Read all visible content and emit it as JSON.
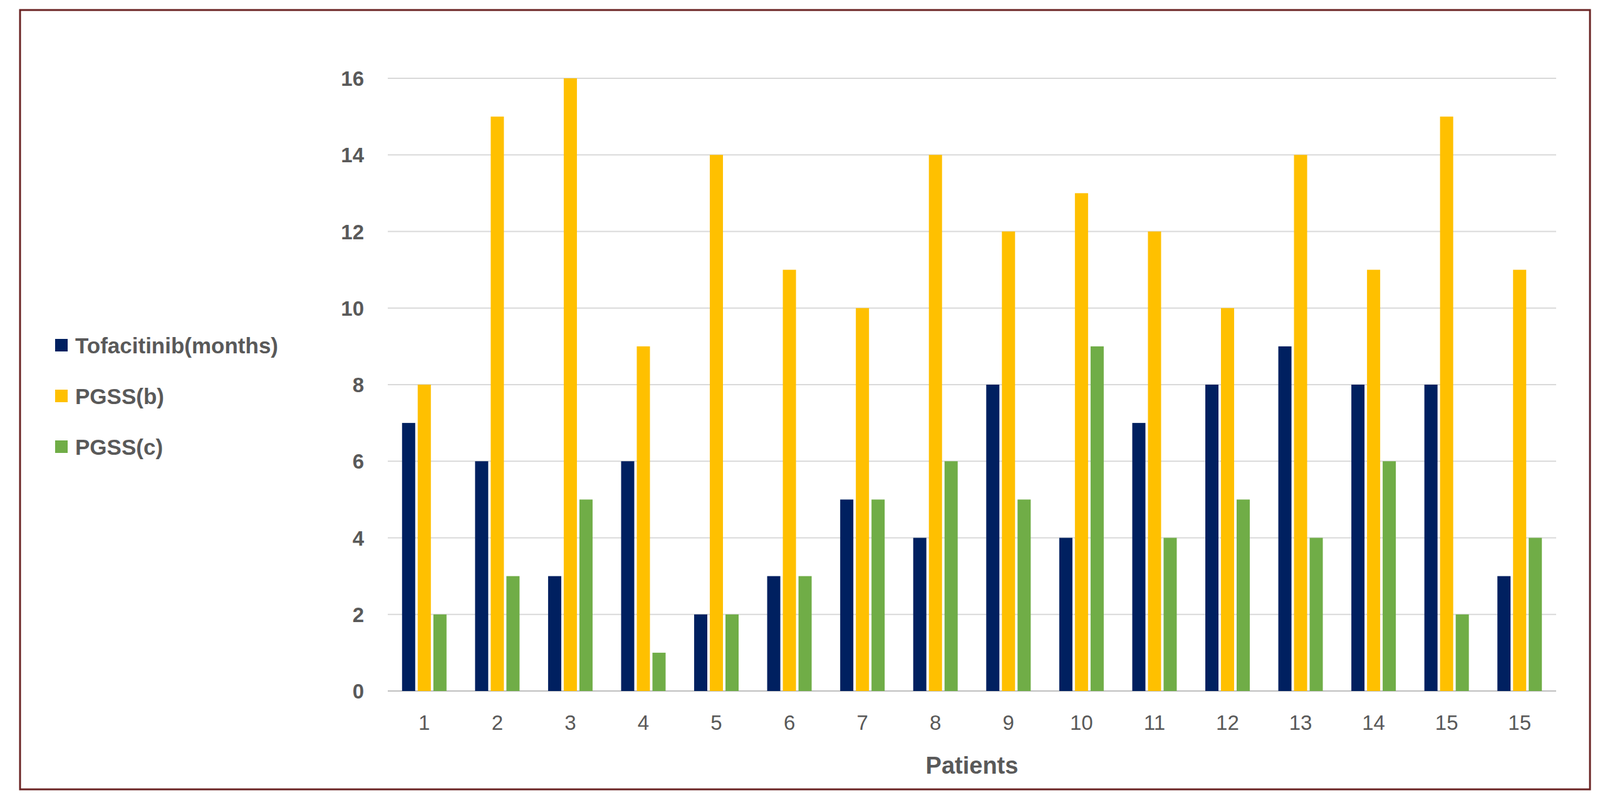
{
  "chart_data": {
    "type": "bar",
    "x_label": "Patients",
    "categories": [
      "1",
      "2",
      "3",
      "4",
      "5",
      "6",
      "7",
      "8",
      "9",
      "10",
      "11",
      "12",
      "13",
      "14",
      "15",
      "15"
    ],
    "series": [
      {
        "name": "Tofacitinib(months)",
        "color": "#002060",
        "values": [
          7,
          6,
          3,
          6,
          2,
          3,
          5,
          4,
          8,
          4,
          7,
          8,
          9,
          8,
          8,
          3
        ]
      },
      {
        "name": "PGSS(b)",
        "color": "#ffc000",
        "values": [
          8,
          15,
          16,
          9,
          14,
          11,
          10,
          14,
          12,
          13,
          12,
          10,
          14,
          11,
          15,
          11
        ]
      },
      {
        "name": "PGSS(c)",
        "color": "#70ad47",
        "values": [
          2,
          3,
          5,
          1,
          2,
          3,
          5,
          6,
          5,
          9,
          4,
          5,
          4,
          6,
          2,
          4
        ]
      }
    ],
    "ylim": [
      0,
      16
    ],
    "yticks": [
      0,
      2,
      4,
      6,
      8,
      10,
      12,
      14,
      16
    ],
    "grid": true,
    "legend": "left"
  }
}
